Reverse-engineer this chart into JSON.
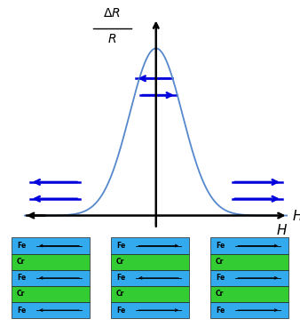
{
  "bg_color": "#ffffff",
  "curve_color": "#5588cc",
  "axis_color": "#000000",
  "arrow_color": "#0000dd",
  "gauss_amplitude": 1.0,
  "gauss_sigma": 0.9,
  "x_range": [
    -4.5,
    4.5
  ],
  "y_range": [
    -0.08,
    1.25
  ],
  "fe_color": "#33aaee",
  "cr_color": "#33cc33",
  "box_configs": [
    {
      "fe_dirs": [
        -1,
        -1,
        -1
      ]
    },
    {
      "fe_dirs": [
        1,
        -1,
        1
      ]
    },
    {
      "fe_dirs": [
        1,
        1,
        1
      ]
    }
  ],
  "layers": [
    [
      "Fe",
      "fe"
    ],
    [
      "Cr",
      "cr"
    ],
    [
      "Fe",
      "fe"
    ],
    [
      "Cr",
      "cr"
    ],
    [
      "Fe",
      "fe"
    ]
  ]
}
